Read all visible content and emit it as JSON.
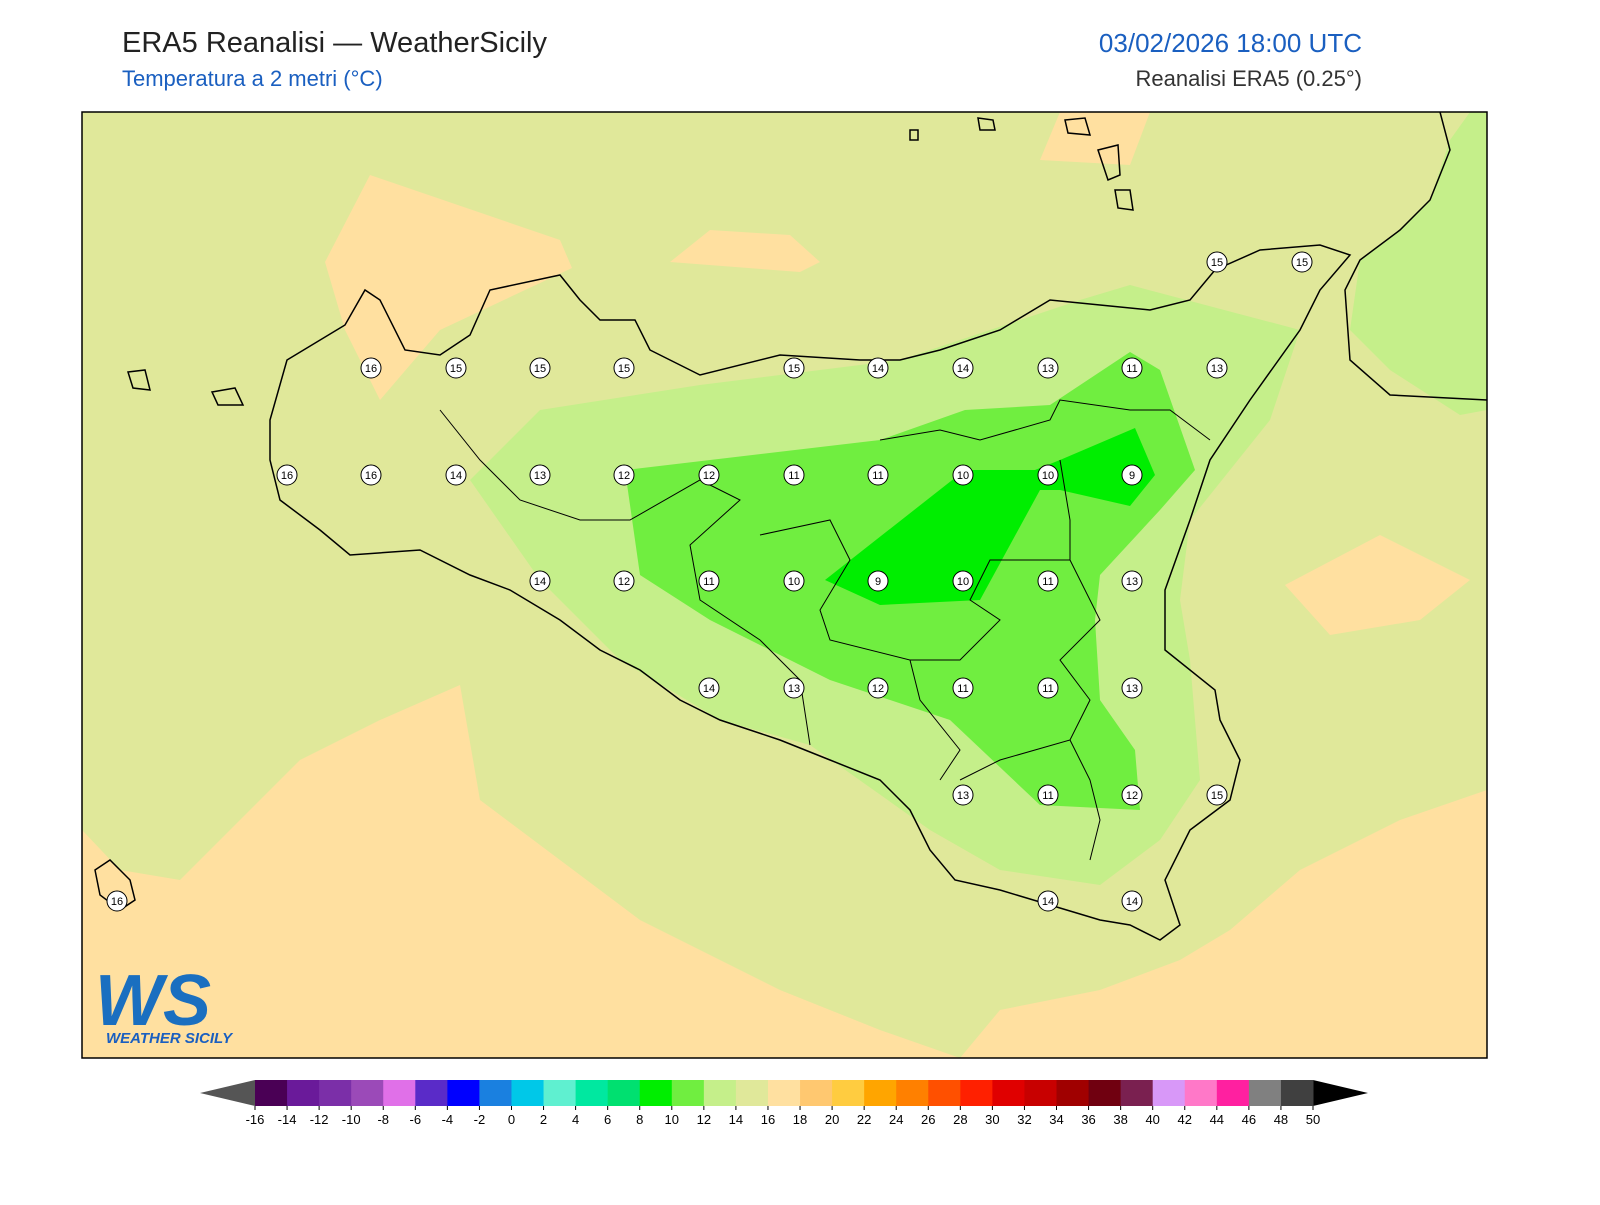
{
  "header": {
    "title": "ERA5 Reanalisi — WeatherSicily",
    "subtitle": "Temperatura a 2 metri (°C)",
    "datetime": "03/02/2026 18:00 UTC",
    "source": "Reanalisi ERA5 (0.25°)"
  },
  "stations": [
    15,
    15,
    16,
    15,
    15,
    15,
    15,
    14,
    14,
    13,
    11,
    13,
    16,
    16,
    14,
    13,
    12,
    12,
    11,
    11,
    10,
    10,
    9,
    14,
    12,
    11,
    10,
    9,
    10,
    11,
    13,
    14,
    13,
    12,
    11,
    11,
    13,
    13,
    11,
    12,
    15,
    16,
    14,
    14
  ],
  "colorbar": {
    "ticks": [
      -16,
      -14,
      -12,
      -10,
      -8,
      -6,
      -4,
      -2,
      0,
      2,
      4,
      6,
      8,
      10,
      12,
      14,
      16,
      18,
      20,
      22,
      24,
      26,
      28,
      30,
      32,
      34,
      36,
      38,
      40,
      42,
      44,
      46,
      48,
      50
    ],
    "colors": [
      "#4a0055",
      "#6a1a9a",
      "#7b2fa8",
      "#9b4ab8",
      "#e070e8",
      "#5a2bc8",
      "#0000ff",
      "#1a80e0",
      "#00c8e8",
      "#5ff0d0",
      "#00e8a0",
      "#00e070",
      "#00ee00",
      "#70ee40",
      "#c5ef8a",
      "#e0e89a",
      "#ffe0a0",
      "#ffc870",
      "#ffcc40",
      "#ffa500",
      "#ff8000",
      "#ff5000",
      "#ff2000",
      "#e00000",
      "#c80000",
      "#a00000",
      "#700010",
      "#7a2050",
      "#d898f8",
      "#ff78c8",
      "#ff20a0",
      "#808080",
      "#404040"
    ]
  },
  "logo": {
    "mark": "WS",
    "name": "WEATHER SICILY"
  }
}
